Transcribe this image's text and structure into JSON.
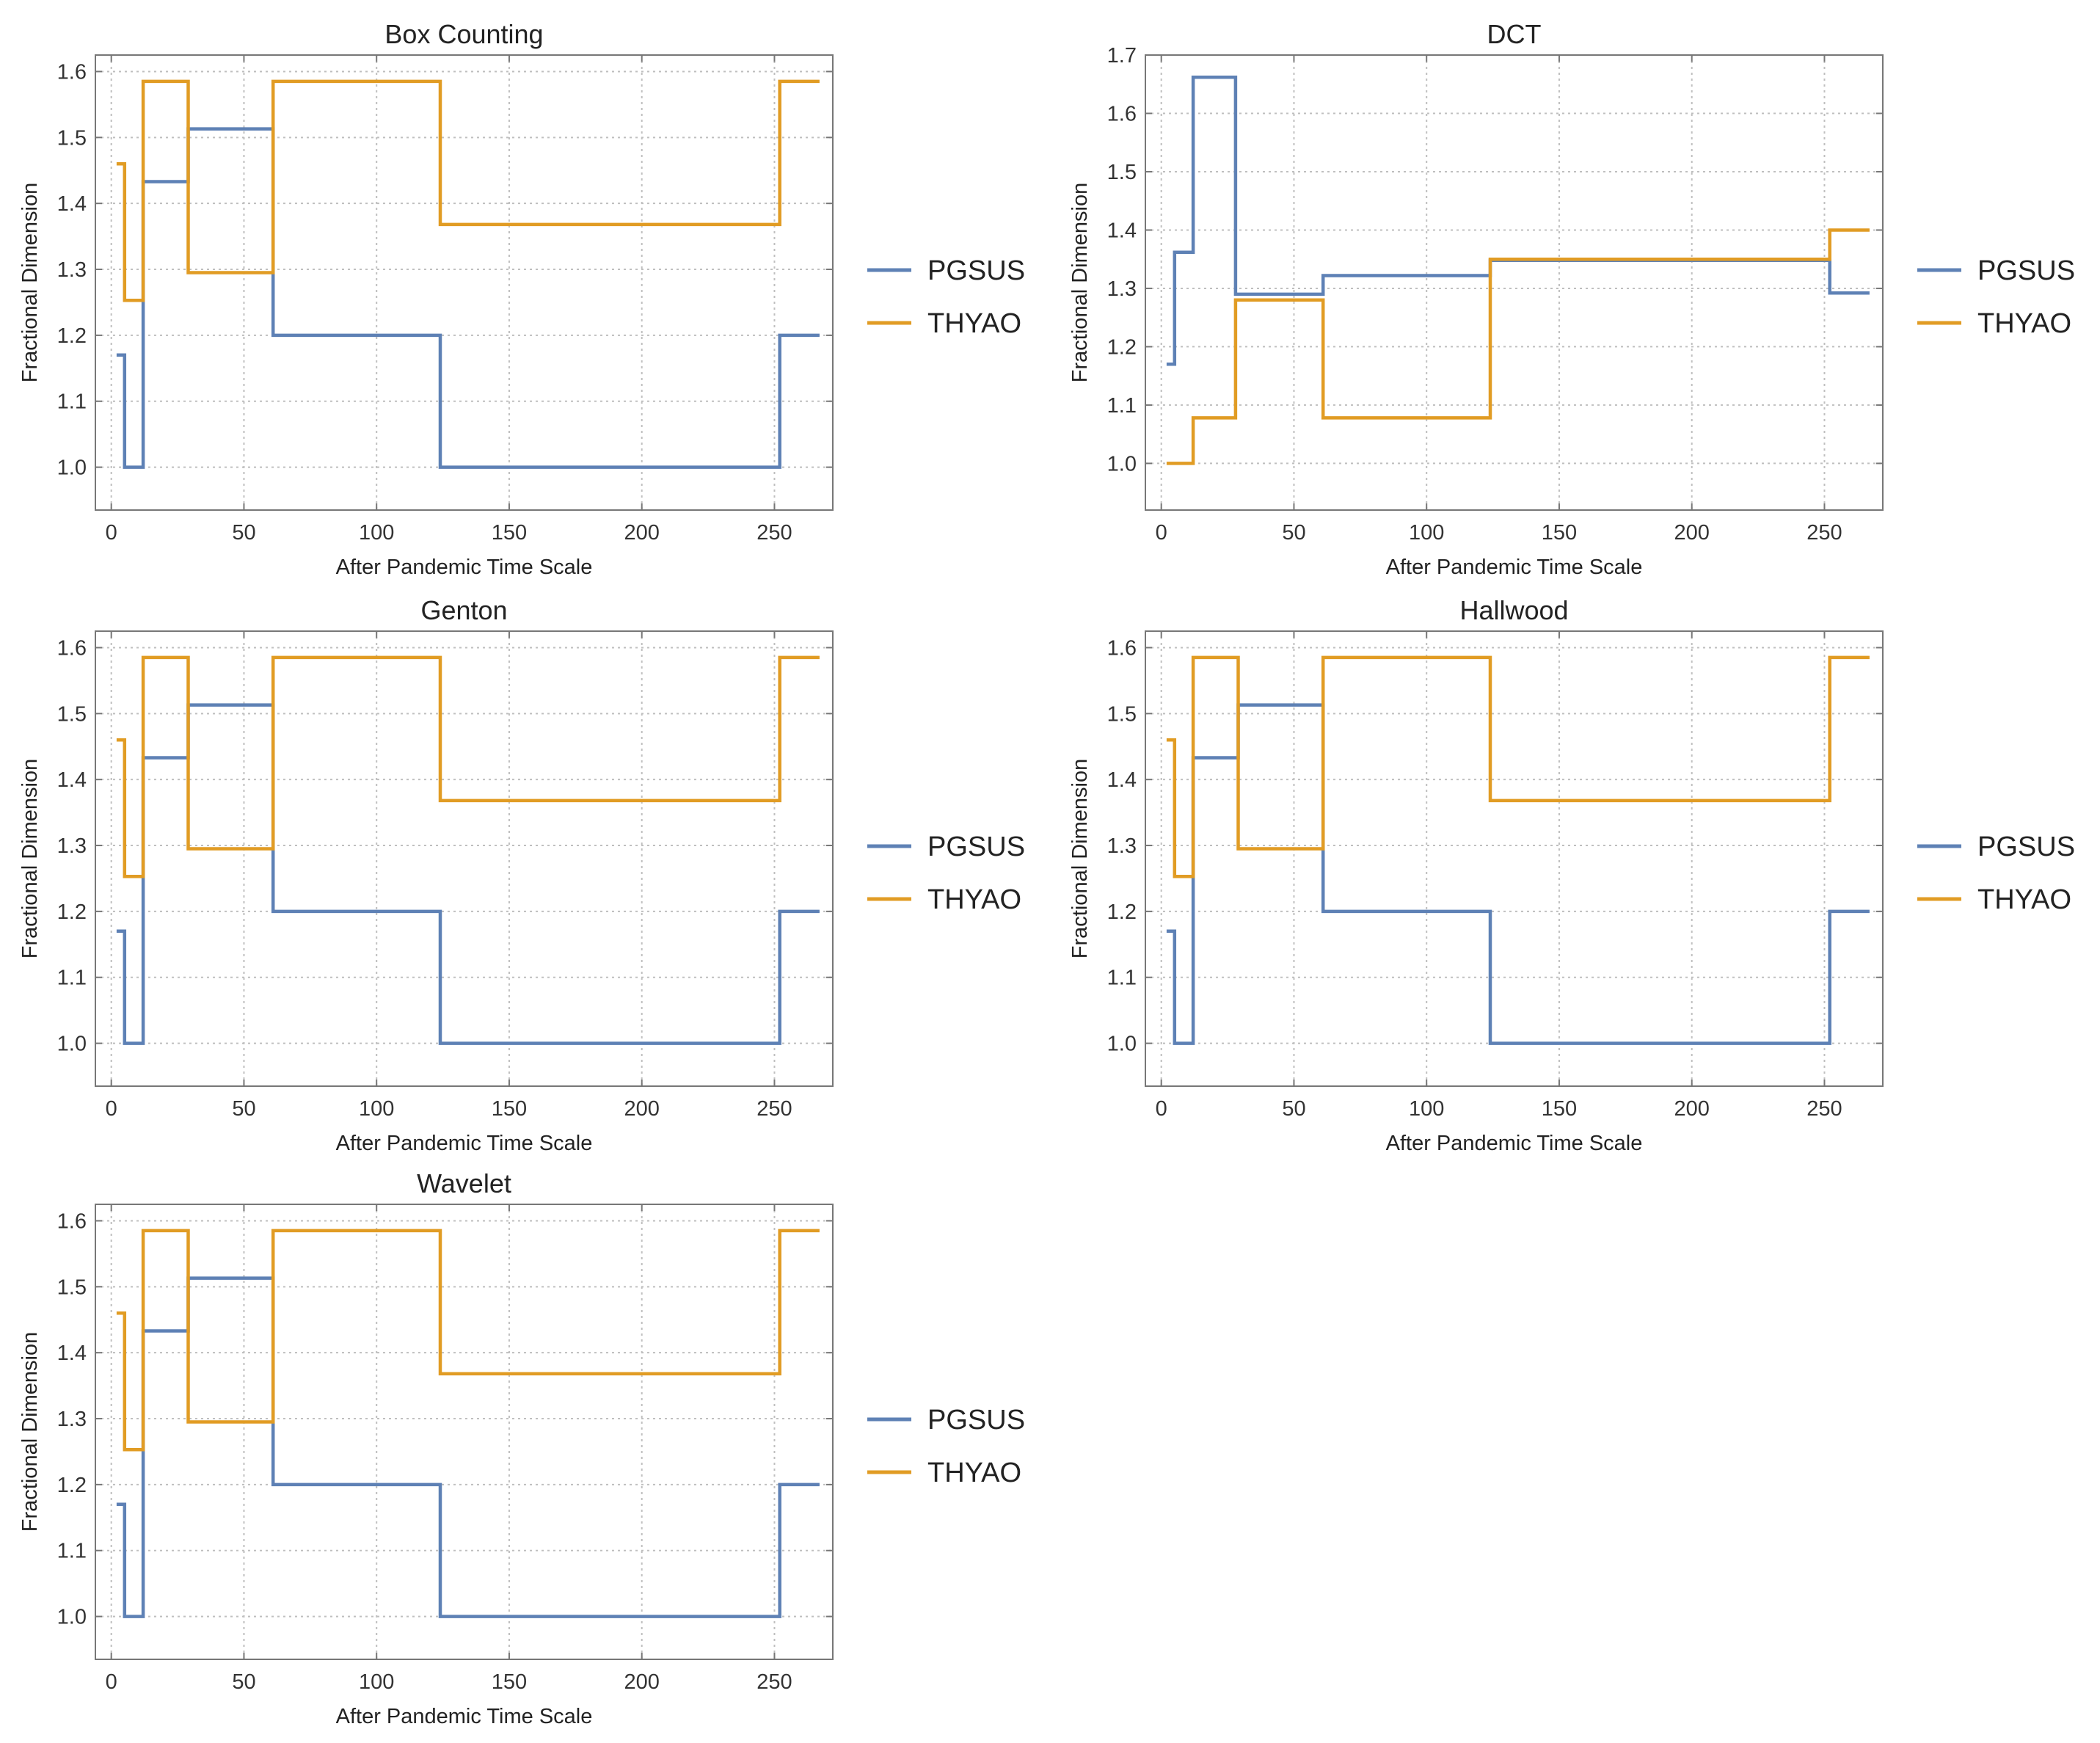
{
  "colors": {
    "PGSUS": "#5e81b5",
    "THYAO": "#e19c24",
    "grid": "#bfbfbf",
    "frame": "#777777"
  },
  "chart_data": [
    {
      "type": "line",
      "title": "Box Counting",
      "xlabel": "After Pandemic Time Scale",
      "ylabel": "Fractional Dimension",
      "xlim": [
        -6,
        272
      ],
      "ylim": [
        0.935,
        1.625
      ],
      "xticks": [
        0,
        50,
        100,
        150,
        200,
        250
      ],
      "yticks": [
        1.0,
        1.1,
        1.2,
        1.3,
        1.4,
        1.5,
        1.6
      ],
      "ytick_labels": [
        "1.0",
        "1.1",
        "1.2",
        "1.3",
        "1.4",
        "1.5",
        "1.6"
      ],
      "legend": "right",
      "series": [
        {
          "name": "PGSUS",
          "x": [
            2,
            5,
            5,
            12,
            12,
            29,
            29,
            61,
            61,
            124,
            124,
            252,
            252,
            267
          ],
          "y": [
            1.17,
            1.17,
            1.0,
            1.0,
            1.433,
            1.433,
            1.513,
            1.513,
            1.2,
            1.2,
            1.0,
            1.0,
            1.2,
            1.2
          ]
        },
        {
          "name": "THYAO",
          "x": [
            2,
            5,
            5,
            12,
            12,
            29,
            29,
            61,
            61,
            124,
            124,
            252,
            252,
            267
          ],
          "y": [
            1.46,
            1.46,
            1.253,
            1.253,
            1.585,
            1.585,
            1.295,
            1.295,
            1.585,
            1.585,
            1.368,
            1.368,
            1.585,
            1.585
          ]
        }
      ]
    },
    {
      "type": "line",
      "title": "DCT",
      "xlabel": "After Pandemic Time Scale",
      "ylabel": "Fractional Dimension",
      "xlim": [
        -6,
        272
      ],
      "ylim": [
        0.92,
        1.7
      ],
      "xticks": [
        0,
        50,
        100,
        150,
        200,
        250
      ],
      "yticks": [
        1.0,
        1.1,
        1.2,
        1.3,
        1.4,
        1.5,
        1.6,
        1.7
      ],
      "ytick_labels": [
        "1.0",
        "1.1",
        "1.2",
        "1.3",
        "1.4",
        "1.5",
        "1.6",
        "1.7"
      ],
      "legend": "right",
      "series": [
        {
          "name": "PGSUS",
          "x": [
            2,
            5,
            5,
            12,
            12,
            28,
            28,
            61,
            61,
            124,
            124,
            252,
            252,
            267
          ],
          "y": [
            1.17,
            1.17,
            1.362,
            1.362,
            1.662,
            1.662,
            1.29,
            1.29,
            1.322,
            1.322,
            1.348,
            1.348,
            1.292,
            1.292
          ]
        },
        {
          "name": "THYAO",
          "x": [
            2,
            12,
            12,
            28,
            28,
            61,
            61,
            124,
            124,
            252,
            252,
            267
          ],
          "y": [
            1.0,
            1.0,
            1.078,
            1.078,
            1.28,
            1.28,
            1.078,
            1.078,
            1.35,
            1.35,
            1.4,
            1.4
          ]
        }
      ]
    },
    {
      "type": "line",
      "title": "Genton",
      "xlabel": "After Pandemic Time Scale",
      "ylabel": "Fractional Dimension",
      "xlim": [
        -6,
        272
      ],
      "ylim": [
        0.935,
        1.625
      ],
      "xticks": [
        0,
        50,
        100,
        150,
        200,
        250
      ],
      "yticks": [
        1.0,
        1.1,
        1.2,
        1.3,
        1.4,
        1.5,
        1.6
      ],
      "ytick_labels": [
        "1.0",
        "1.1",
        "1.2",
        "1.3",
        "1.4",
        "1.5",
        "1.6"
      ],
      "legend": "right",
      "series": [
        {
          "name": "PGSUS",
          "x": [
            2,
            5,
            5,
            12,
            12,
            29,
            29,
            61,
            61,
            124,
            124,
            252,
            252,
            267
          ],
          "y": [
            1.17,
            1.17,
            1.0,
            1.0,
            1.433,
            1.433,
            1.513,
            1.513,
            1.2,
            1.2,
            1.0,
            1.0,
            1.2,
            1.2
          ]
        },
        {
          "name": "THYAO",
          "x": [
            2,
            5,
            5,
            12,
            12,
            29,
            29,
            61,
            61,
            124,
            124,
            252,
            252,
            267
          ],
          "y": [
            1.46,
            1.46,
            1.253,
            1.253,
            1.585,
            1.585,
            1.295,
            1.295,
            1.585,
            1.585,
            1.368,
            1.368,
            1.585,
            1.585
          ]
        }
      ]
    },
    {
      "type": "line",
      "title": "Hallwood",
      "xlabel": "After Pandemic Time Scale",
      "ylabel": "Fractional Dimension",
      "xlim": [
        -6,
        272
      ],
      "ylim": [
        0.935,
        1.625
      ],
      "xticks": [
        0,
        50,
        100,
        150,
        200,
        250
      ],
      "yticks": [
        1.0,
        1.1,
        1.2,
        1.3,
        1.4,
        1.5,
        1.6
      ],
      "ytick_labels": [
        "1.0",
        "1.1",
        "1.2",
        "1.3",
        "1.4",
        "1.5",
        "1.6"
      ],
      "legend": "right",
      "series": [
        {
          "name": "PGSUS",
          "x": [
            2,
            5,
            5,
            12,
            12,
            29,
            29,
            61,
            61,
            124,
            124,
            252,
            252,
            267
          ],
          "y": [
            1.17,
            1.17,
            1.0,
            1.0,
            1.433,
            1.433,
            1.513,
            1.513,
            1.2,
            1.2,
            1.0,
            1.0,
            1.2,
            1.2
          ]
        },
        {
          "name": "THYAO",
          "x": [
            2,
            5,
            5,
            12,
            12,
            29,
            29,
            61,
            61,
            124,
            124,
            252,
            252,
            267
          ],
          "y": [
            1.46,
            1.46,
            1.253,
            1.253,
            1.585,
            1.585,
            1.295,
            1.295,
            1.585,
            1.585,
            1.368,
            1.368,
            1.585,
            1.585
          ]
        }
      ]
    },
    {
      "type": "line",
      "title": "Wavelet",
      "xlabel": "After Pandemic Time Scale",
      "ylabel": "Fractional Dimension",
      "xlim": [
        -6,
        272
      ],
      "ylim": [
        0.935,
        1.625
      ],
      "xticks": [
        0,
        50,
        100,
        150,
        200,
        250
      ],
      "yticks": [
        1.0,
        1.1,
        1.2,
        1.3,
        1.4,
        1.5,
        1.6
      ],
      "ytick_labels": [
        "1.0",
        "1.1",
        "1.2",
        "1.3",
        "1.4",
        "1.5",
        "1.6"
      ],
      "legend": "right",
      "series": [
        {
          "name": "PGSUS",
          "x": [
            2,
            5,
            5,
            12,
            12,
            29,
            29,
            61,
            61,
            124,
            124,
            252,
            252,
            267
          ],
          "y": [
            1.17,
            1.17,
            1.0,
            1.0,
            1.433,
            1.433,
            1.513,
            1.513,
            1.2,
            1.2,
            1.0,
            1.0,
            1.2,
            1.2
          ]
        },
        {
          "name": "THYAO",
          "x": [
            2,
            5,
            5,
            12,
            12,
            29,
            29,
            61,
            61,
            124,
            124,
            252,
            252,
            267
          ],
          "y": [
            1.46,
            1.46,
            1.253,
            1.253,
            1.585,
            1.585,
            1.295,
            1.295,
            1.585,
            1.585,
            1.368,
            1.368,
            1.585,
            1.585
          ]
        }
      ]
    }
  ]
}
